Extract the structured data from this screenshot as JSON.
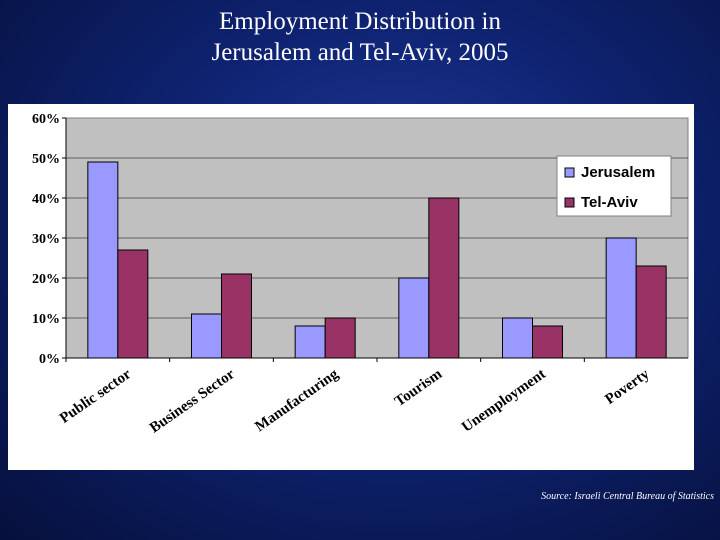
{
  "slide": {
    "title_line1": "Employment Distribution in",
    "title_line2": "Jerusalem and Tel-Aviv, 2005",
    "source": "Source: Israeli Central Bureau of Statistics"
  },
  "chart_data": {
    "type": "bar",
    "title": "",
    "xlabel": "",
    "ylabel": "",
    "categories": [
      "Public sector",
      "Business Sector",
      "Manufacturing",
      "Tourism",
      "Unemployment",
      "Poverty"
    ],
    "series": [
      {
        "name": "Jerusalem",
        "values": [
          49,
          11,
          8,
          20,
          10,
          30
        ],
        "color": "#9999ff"
      },
      {
        "name": "Tel-Aviv",
        "values": [
          27,
          21,
          10,
          40,
          8,
          23
        ],
        "color": "#993366"
      }
    ],
    "ylim": [
      0,
      60
    ],
    "yticks": [
      0,
      10,
      20,
      30,
      40,
      50,
      60
    ],
    "ytick_labels": [
      "0%",
      "10%",
      "20%",
      "30%",
      "40%",
      "50%",
      "60%"
    ],
    "plot_background": "#c0c0c0",
    "grid": true,
    "legend_position": "top-right"
  }
}
